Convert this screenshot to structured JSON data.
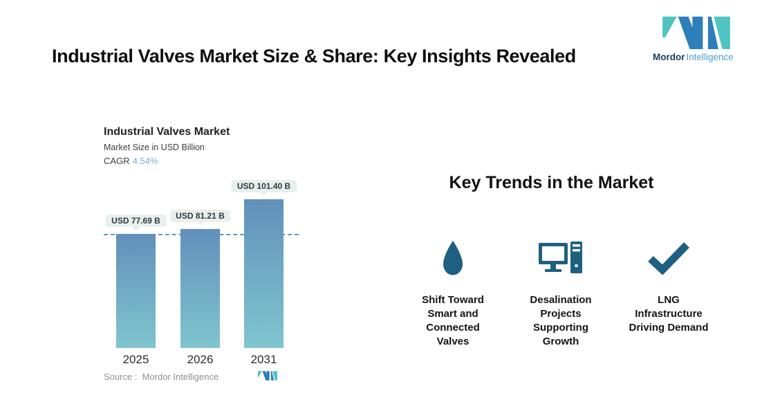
{
  "header": {
    "title": "Industrial Valves Market Size & Share: Key Insights Revealed"
  },
  "brand": {
    "logo_icon": "mordor-intelligence-logo",
    "name_primary": "Mordor",
    "name_secondary": "Intelligence",
    "teal": "#4FC4C0",
    "blue": "#2C7FB8"
  },
  "chart_data": {
    "type": "bar",
    "title": "Industrial Valves Market",
    "subtitle": "Market Size in USD Billion",
    "cagr_label": "CAGR",
    "cagr_value": "4.54%",
    "categories": [
      "2025",
      "2026",
      "2031"
    ],
    "values": [
      77.69,
      81.21,
      101.4
    ],
    "value_labels": [
      "USD 77.69 B",
      "USD 81.21 B",
      "USD 101.40 B"
    ],
    "ylabel": "USD Billion",
    "xlabel": "",
    "baseline_dashed_at": 77.69,
    "grid": "off",
    "legend": "none",
    "source": "Source :  Mordor Intelligence",
    "bar_color_top": "#6190BB",
    "bar_color_bottom": "#80C5CE",
    "dashed_line_color": "#5D96C5",
    "cagr_value_color": "#79AFD3"
  },
  "trends": {
    "heading": "Key Trends in the Market",
    "icon_color": "#1E5F82",
    "items": [
      {
        "icon": "water-drop-icon",
        "label": "Shift Toward\nSmart and\nConnected\nValves"
      },
      {
        "icon": "desktop-computer-icon",
        "label": "Desalination\nProjects\nSupporting\nGrowth"
      },
      {
        "icon": "checkmark-icon",
        "label": "LNG\nInfrastructure\nDriving Demand"
      }
    ]
  }
}
